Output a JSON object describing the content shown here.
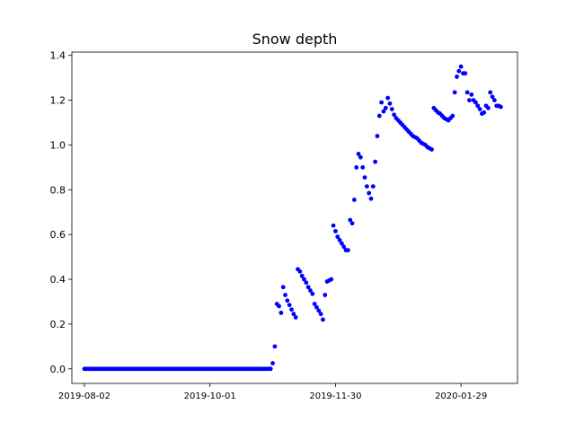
{
  "chart_data": {
    "type": "scatter",
    "title": "Snow depth",
    "xlabel": "",
    "ylabel": "",
    "x_axis": "date",
    "xlim": [
      "2019-07-27",
      "2020-02-25"
    ],
    "ylim": [
      -0.065,
      1.415
    ],
    "xticks": [
      "2019-08-02",
      "2019-10-01",
      "2019-11-30",
      "2020-01-29"
    ],
    "yticks": [
      0.0,
      0.2,
      0.4,
      0.6,
      0.8,
      1.0,
      1.2,
      1.4
    ],
    "ytick_labels": [
      "0.0",
      "0.2",
      "0.4",
      "0.6",
      "0.8",
      "1.0",
      "1.2",
      "1.4"
    ],
    "grid": false,
    "marker_color": "#0000ff",
    "points": [
      [
        "2019-08-02",
        0.0
      ],
      [
        "2019-08-03",
        0.0
      ],
      [
        "2019-08-04",
        0.0
      ],
      [
        "2019-08-05",
        0.0
      ],
      [
        "2019-08-06",
        0.0
      ],
      [
        "2019-08-07",
        0.0
      ],
      [
        "2019-08-08",
        0.0
      ],
      [
        "2019-08-09",
        0.0
      ],
      [
        "2019-08-10",
        0.0
      ],
      [
        "2019-08-11",
        0.0
      ],
      [
        "2019-08-12",
        0.0
      ],
      [
        "2019-08-13",
        0.0
      ],
      [
        "2019-08-14",
        0.0
      ],
      [
        "2019-08-15",
        0.0
      ],
      [
        "2019-08-16",
        0.0
      ],
      [
        "2019-08-17",
        0.0
      ],
      [
        "2019-08-18",
        0.0
      ],
      [
        "2019-08-19",
        0.0
      ],
      [
        "2019-08-20",
        0.0
      ],
      [
        "2019-08-21",
        0.0
      ],
      [
        "2019-08-22",
        0.0
      ],
      [
        "2019-08-23",
        0.0
      ],
      [
        "2019-08-24",
        0.0
      ],
      [
        "2019-08-25",
        0.0
      ],
      [
        "2019-08-26",
        0.0
      ],
      [
        "2019-08-27",
        0.0
      ],
      [
        "2019-08-28",
        0.0
      ],
      [
        "2019-08-29",
        0.0
      ],
      [
        "2019-08-30",
        0.0
      ],
      [
        "2019-08-31",
        0.0
      ],
      [
        "2019-09-01",
        0.0
      ],
      [
        "2019-09-02",
        0.0
      ],
      [
        "2019-09-03",
        0.0
      ],
      [
        "2019-09-04",
        0.0
      ],
      [
        "2019-09-05",
        0.0
      ],
      [
        "2019-09-06",
        0.0
      ],
      [
        "2019-09-07",
        0.0
      ],
      [
        "2019-09-08",
        0.0
      ],
      [
        "2019-09-09",
        0.0
      ],
      [
        "2019-09-10",
        0.0
      ],
      [
        "2019-09-11",
        0.0
      ],
      [
        "2019-09-12",
        0.0
      ],
      [
        "2019-09-13",
        0.0
      ],
      [
        "2019-09-14",
        0.0
      ],
      [
        "2019-09-15",
        0.0
      ],
      [
        "2019-09-16",
        0.0
      ],
      [
        "2019-09-17",
        0.0
      ],
      [
        "2019-09-18",
        0.0
      ],
      [
        "2019-09-19",
        0.0
      ],
      [
        "2019-09-20",
        0.0
      ],
      [
        "2019-09-21",
        0.0
      ],
      [
        "2019-09-22",
        0.0
      ],
      [
        "2019-09-23",
        0.0
      ],
      [
        "2019-09-24",
        0.0
      ],
      [
        "2019-09-25",
        0.0
      ],
      [
        "2019-09-26",
        0.0
      ],
      [
        "2019-09-27",
        0.0
      ],
      [
        "2019-09-28",
        0.0
      ],
      [
        "2019-09-29",
        0.0
      ],
      [
        "2019-09-30",
        0.0
      ],
      [
        "2019-10-01",
        0.0
      ],
      [
        "2019-10-02",
        0.0
      ],
      [
        "2019-10-03",
        0.0
      ],
      [
        "2019-10-04",
        0.0
      ],
      [
        "2019-10-05",
        0.0
      ],
      [
        "2019-10-06",
        0.0
      ],
      [
        "2019-10-07",
        0.0
      ],
      [
        "2019-10-08",
        0.0
      ],
      [
        "2019-10-09",
        0.0
      ],
      [
        "2019-10-10",
        0.0
      ],
      [
        "2019-10-11",
        0.0
      ],
      [
        "2019-10-12",
        0.0
      ],
      [
        "2019-10-13",
        0.0
      ],
      [
        "2019-10-14",
        0.0
      ],
      [
        "2019-10-15",
        0.0
      ],
      [
        "2019-10-16",
        0.0
      ],
      [
        "2019-10-17",
        0.0
      ],
      [
        "2019-10-18",
        0.0
      ],
      [
        "2019-10-19",
        0.0
      ],
      [
        "2019-10-20",
        0.0
      ],
      [
        "2019-10-21",
        0.0
      ],
      [
        "2019-10-22",
        0.0
      ],
      [
        "2019-10-23",
        0.0
      ],
      [
        "2019-10-24",
        0.0
      ],
      [
        "2019-10-25",
        0.0
      ],
      [
        "2019-10-26",
        0.0
      ],
      [
        "2019-10-27",
        0.0
      ],
      [
        "2019-10-28",
        0.0
      ],
      [
        "2019-10-29",
        0.0
      ],
      [
        "2019-10-30",
        0.0
      ],
      [
        "2019-10-31",
        0.025
      ],
      [
        "2019-11-01",
        0.1
      ],
      [
        "2019-11-02",
        0.29
      ],
      [
        "2019-11-03",
        0.28
      ],
      [
        "2019-11-04",
        0.25
      ],
      [
        "2019-11-05",
        0.365
      ],
      [
        "2019-11-06",
        0.33
      ],
      [
        "2019-11-07",
        0.305
      ],
      [
        "2019-11-08",
        0.285
      ],
      [
        "2019-11-09",
        0.265
      ],
      [
        "2019-11-10",
        0.245
      ],
      [
        "2019-11-11",
        0.23
      ],
      [
        "2019-11-12",
        0.445
      ],
      [
        "2019-11-13",
        0.435
      ],
      [
        "2019-11-14",
        0.415
      ],
      [
        "2019-11-15",
        0.4
      ],
      [
        "2019-11-16",
        0.385
      ],
      [
        "2019-11-17",
        0.365
      ],
      [
        "2019-11-18",
        0.35
      ],
      [
        "2019-11-19",
        0.335
      ],
      [
        "2019-11-20",
        0.29
      ],
      [
        "2019-11-21",
        0.275
      ],
      [
        "2019-11-22",
        0.26
      ],
      [
        "2019-11-23",
        0.245
      ],
      [
        "2019-11-24",
        0.22
      ],
      [
        "2019-11-25",
        0.33
      ],
      [
        "2019-11-26",
        0.39
      ],
      [
        "2019-11-27",
        0.395
      ],
      [
        "2019-11-28",
        0.4
      ],
      [
        "2019-11-29",
        0.64
      ],
      [
        "2019-11-30",
        0.615
      ],
      [
        "2019-12-01",
        0.59
      ],
      [
        "2019-12-02",
        0.575
      ],
      [
        "2019-12-03",
        0.56
      ],
      [
        "2019-12-04",
        0.545
      ],
      [
        "2019-12-05",
        0.53
      ],
      [
        "2019-12-06",
        0.53
      ],
      [
        "2019-12-07",
        0.665
      ],
      [
        "2019-12-08",
        0.65
      ],
      [
        "2019-12-09",
        0.755
      ],
      [
        "2019-12-10",
        0.9
      ],
      [
        "2019-12-11",
        0.96
      ],
      [
        "2019-12-12",
        0.945
      ],
      [
        "2019-12-13",
        0.9
      ],
      [
        "2019-12-14",
        0.855
      ],
      [
        "2019-12-15",
        0.815
      ],
      [
        "2019-12-16",
        0.785
      ],
      [
        "2019-12-17",
        0.76
      ],
      [
        "2019-12-18",
        0.815
      ],
      [
        "2019-12-19",
        0.925
      ],
      [
        "2019-12-20",
        1.04
      ],
      [
        "2019-12-21",
        1.13
      ],
      [
        "2019-12-22",
        1.19
      ],
      [
        "2019-12-23",
        1.15
      ],
      [
        "2019-12-24",
        1.165
      ],
      [
        "2019-12-25",
        1.21
      ],
      [
        "2019-12-26",
        1.185
      ],
      [
        "2019-12-27",
        1.16
      ],
      [
        "2019-12-28",
        1.135
      ],
      [
        "2019-12-29",
        1.12
      ],
      [
        "2019-12-30",
        1.11
      ],
      [
        "2019-12-31",
        1.1
      ],
      [
        "2020-01-01",
        1.09
      ],
      [
        "2020-01-02",
        1.08
      ],
      [
        "2020-01-03",
        1.07
      ],
      [
        "2020-01-04",
        1.06
      ],
      [
        "2020-01-05",
        1.05
      ],
      [
        "2020-01-06",
        1.04
      ],
      [
        "2020-01-07",
        1.035
      ],
      [
        "2020-01-08",
        1.03
      ],
      [
        "2020-01-09",
        1.02
      ],
      [
        "2020-01-10",
        1.01
      ],
      [
        "2020-01-11",
        1.005
      ],
      [
        "2020-01-12",
        1.0
      ],
      [
        "2020-01-13",
        0.99
      ],
      [
        "2020-01-14",
        0.985
      ],
      [
        "2020-01-15",
        0.98
      ],
      [
        "2020-01-16",
        1.165
      ],
      [
        "2020-01-17",
        1.155
      ],
      [
        "2020-01-18",
        1.145
      ],
      [
        "2020-01-19",
        1.14
      ],
      [
        "2020-01-20",
        1.13
      ],
      [
        "2020-01-21",
        1.12
      ],
      [
        "2020-01-22",
        1.115
      ],
      [
        "2020-01-23",
        1.11
      ],
      [
        "2020-01-24",
        1.12
      ],
      [
        "2020-01-25",
        1.13
      ],
      [
        "2020-01-26",
        1.235
      ],
      [
        "2020-01-27",
        1.305
      ],
      [
        "2020-01-28",
        1.33
      ],
      [
        "2020-01-29",
        1.35
      ],
      [
        "2020-01-30",
        1.32
      ],
      [
        "2020-01-31",
        1.32
      ],
      [
        "2020-02-01",
        1.235
      ],
      [
        "2020-02-02",
        1.2
      ],
      [
        "2020-02-03",
        1.225
      ],
      [
        "2020-02-04",
        1.2
      ],
      [
        "2020-02-05",
        1.19
      ],
      [
        "2020-02-06",
        1.175
      ],
      [
        "2020-02-07",
        1.16
      ],
      [
        "2020-02-08",
        1.14
      ],
      [
        "2020-02-09",
        1.145
      ],
      [
        "2020-02-10",
        1.175
      ],
      [
        "2020-02-11",
        1.165
      ],
      [
        "2020-02-12",
        1.235
      ],
      [
        "2020-02-13",
        1.215
      ],
      [
        "2020-02-14",
        1.2
      ],
      [
        "2020-02-15",
        1.175
      ],
      [
        "2020-02-16",
        1.175
      ],
      [
        "2020-02-17",
        1.17
      ]
    ]
  }
}
